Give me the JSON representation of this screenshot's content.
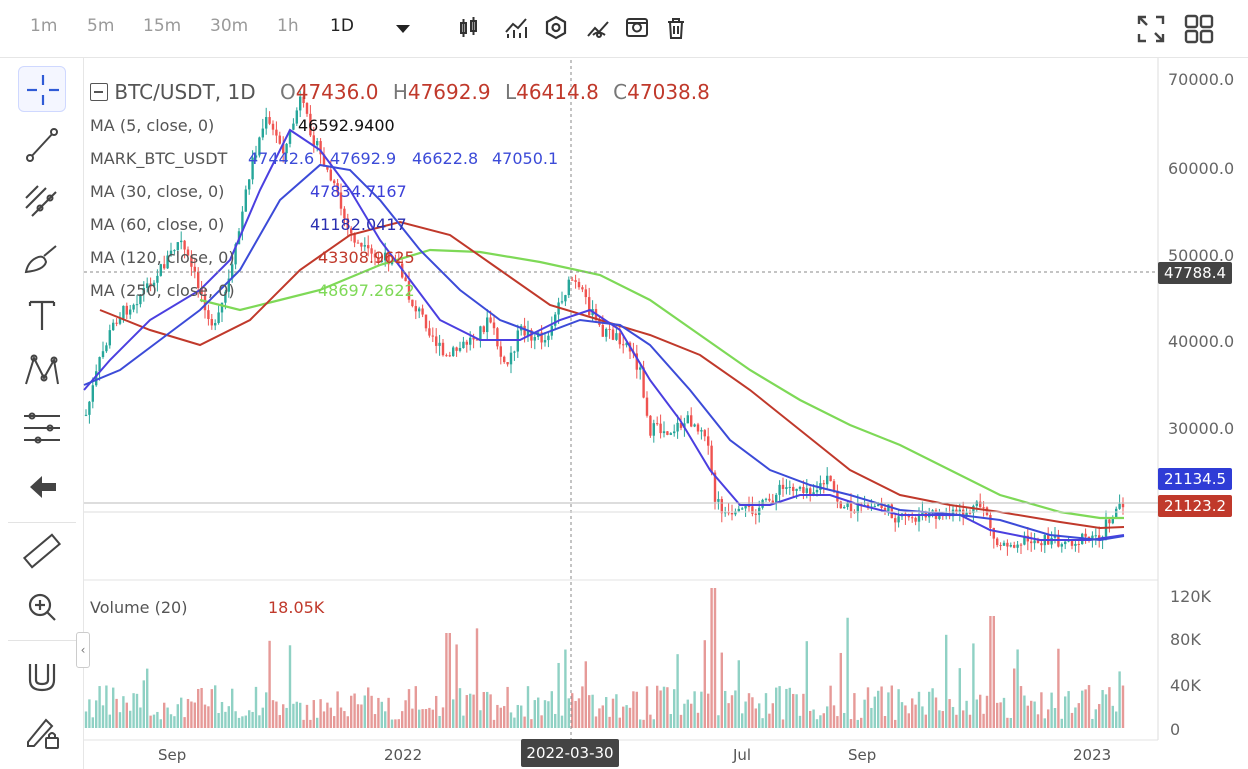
{
  "toolbar": {
    "timeframes": [
      "1m",
      "5m",
      "15m",
      "30m",
      "1h",
      "1D"
    ],
    "active_timeframe": "1D"
  },
  "legend": {
    "symbol": "BTC/USDT, 1D",
    "ohlc": {
      "o_label": "O",
      "o": "47436.0",
      "h_label": "H",
      "h": "47692.9",
      "l_label": "L",
      "l": "46414.8",
      "c_label": "C",
      "c": "47038.8"
    },
    "ma5": {
      "label": "MA (5, close, 0)",
      "value": "46592.9400"
    },
    "mark": {
      "label": "MARK_BTC_USDT",
      "v1": "47442.6",
      "v2": "47692.9",
      "v3": "46622.8",
      "v4": "47050.1"
    },
    "ma30": {
      "label": "MA (30, close, 0)",
      "value": "47834.7167"
    },
    "ma60": {
      "label": "MA (60, close, 0)",
      "value": "41182.0417"
    },
    "ma120": {
      "label": "MA (120, close, 0)",
      "value": "43308.9625"
    },
    "ma250": {
      "label": "MA (250, close, 0)",
      "value": "48697.2622"
    }
  },
  "volume": {
    "label": "Volume (20)",
    "value": "18.05K"
  },
  "price_axis": [
    "70000.0",
    "60000.0",
    "50000.0",
    "40000.0",
    "30000.0"
  ],
  "price_tags": {
    "crosshair": "47788.4",
    "blue": "21134.5",
    "red": "21123.2"
  },
  "volume_axis": [
    "120K",
    "80K",
    "40K",
    "0"
  ],
  "time_axis": [
    "Sep",
    "2022",
    "Jul",
    "Sep",
    "2023"
  ],
  "crosshair_date": "2022-03-30",
  "colors": {
    "up": "#26a69a",
    "down": "#ef5350",
    "ma_blue": "#3b3fd8",
    "ma_red": "#c0392b",
    "ma_green": "#7ed957",
    "tag_red": "#c0392b",
    "tag_blue": "#2f3cd6",
    "tag_dark": "#444444"
  }
}
